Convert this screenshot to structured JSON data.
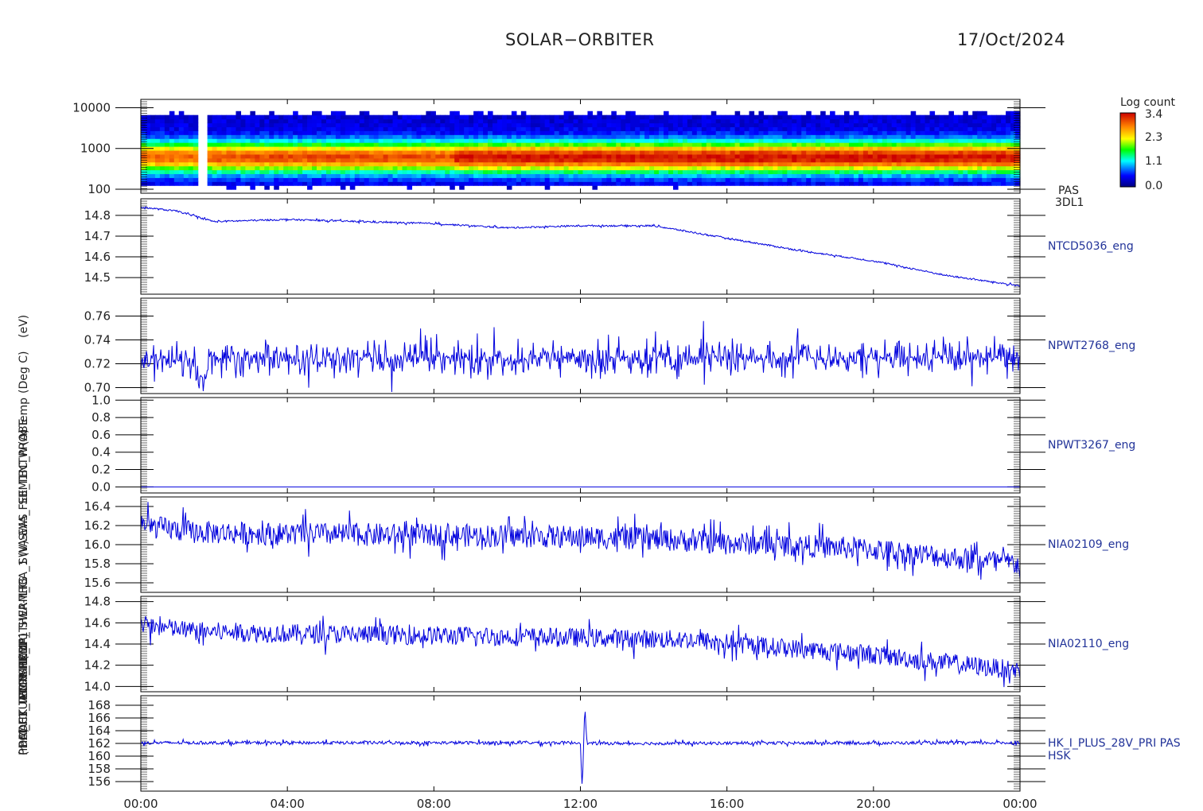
{
  "header": {
    "title": "SOLAR−ORBITER",
    "date": "17/Oct/2024"
  },
  "ylabels": [
    "(eV)",
    "(Deg C)",
    "x Temp",
    "(A)",
    "NTW",
    "SBM1",
    "SWA_FEE_TBC_PROBE",
    "(V)",
    "LTG",
    "SWA-EAS",
    "SWA-TH3",
    "(mA)",
    "SPM1",
    "PCRM",
    "(mA)",
    "ACTUATOR_1",
    "TEMP_THERM_CA_1",
    "PDM_HK_IMON_PCDF1",
    "PCDF1_TEMP_HK_1"
  ],
  "chart_data": [
    {
      "type": "heatmap",
      "panel": "spectrogram",
      "yticks": [
        "10000",
        "1000",
        "100"
      ],
      "ytick_values": [
        10000,
        1000,
        100
      ],
      "ylim": [
        80,
        16000
      ],
      "yscale": "log",
      "rlabel": [
        "PAS",
        "3DL1"
      ],
      "colorbar": {
        "title": "Log count",
        "ticks": [
          "3.4",
          "2.3",
          "1.1",
          "0.0"
        ],
        "range": [
          0.0,
          3.4
        ]
      },
      "gaps": [
        [
          1.5,
          1.78
        ]
      ],
      "peak_energy_eV": 620,
      "peak_log_count": 3.0
    },
    {
      "type": "line",
      "label": "NTCD5036_eng",
      "yticks": [
        "14.8",
        "14.7",
        "14.6",
        "14.5"
      ],
      "ytick_values": [
        14.8,
        14.7,
        14.6,
        14.5
      ],
      "ylim": [
        14.42,
        14.88
      ],
      "color": "#0000dd",
      "x": [
        0,
        1,
        2,
        4,
        6,
        8,
        10,
        12,
        14,
        16,
        18,
        20,
        22,
        24
      ],
      "y": [
        14.84,
        14.82,
        14.77,
        14.78,
        14.77,
        14.76,
        14.74,
        14.75,
        14.75,
        14.69,
        14.63,
        14.58,
        14.51,
        14.46
      ],
      "noise": 0.004
    },
    {
      "type": "line",
      "label": "NPWT2768_eng",
      "yticks": [
        "0.76",
        "0.74",
        "0.72",
        "0.70"
      ],
      "ytick_values": [
        0.76,
        0.74,
        0.72,
        0.7
      ],
      "ylim": [
        0.695,
        0.775
      ],
      "color": "#0000dd",
      "x": [
        0,
        1.45,
        1.5,
        1.8,
        1.82,
        24
      ],
      "y": [
        0.722,
        0.722,
        0.705,
        0.705,
        0.725,
        0.725
      ],
      "noise": 0.014
    },
    {
      "type": "line",
      "label": "NPWT3267_eng",
      "yticks": [
        "1.0",
        "0.8",
        "0.6",
        "0.4",
        "0.2",
        "0.0"
      ],
      "ytick_values": [
        1.0,
        0.8,
        0.6,
        0.4,
        0.2,
        0.0
      ],
      "ylim": [
        -0.07,
        1.03
      ],
      "color": "#0000dd",
      "x": [
        0,
        24
      ],
      "y": [
        0.0,
        0.0
      ],
      "noise": 0.0
    },
    {
      "type": "line",
      "label": "NIA02109_eng",
      "yticks": [
        "16.4",
        "16.2",
        "16.0",
        "15.8",
        "15.6"
      ],
      "ytick_values": [
        16.4,
        16.2,
        16.0,
        15.8,
        15.6
      ],
      "ylim": [
        15.5,
        16.5
      ],
      "color": "#0000dd",
      "x": [
        0,
        1.5,
        4,
        8,
        12,
        14,
        16,
        18,
        20,
        22,
        24
      ],
      "y": [
        16.2,
        16.13,
        16.11,
        16.1,
        16.08,
        16.06,
        16.02,
        15.99,
        15.95,
        15.87,
        15.8
      ],
      "noise": 0.12
    },
    {
      "type": "line",
      "label": "NIA02110_eng",
      "yticks": [
        "14.8",
        "14.6",
        "14.4",
        "14.2",
        "14.0"
      ],
      "ytick_values": [
        14.8,
        14.6,
        14.4,
        14.2,
        14.0
      ],
      "ylim": [
        13.95,
        14.85
      ],
      "color": "#0000dd",
      "x": [
        0,
        1.5,
        4,
        8,
        12,
        15,
        17,
        20,
        22,
        24
      ],
      "y": [
        14.58,
        14.52,
        14.5,
        14.48,
        14.46,
        14.44,
        14.38,
        14.3,
        14.22,
        14.15
      ],
      "noise": 0.09
    },
    {
      "type": "line",
      "label": "HK_I_PLUS_28V_PRI PAS",
      "label2": "HSK",
      "yticks": [
        "168",
        "166",
        "164",
        "162",
        "160",
        "158",
        "156"
      ],
      "ytick_values": [
        168,
        166,
        164,
        162,
        160,
        158,
        156
      ],
      "ylim": [
        154.5,
        169.5
      ],
      "color": "#0000dd",
      "x": [
        0,
        12.0,
        12.05,
        12.12,
        12.18,
        24
      ],
      "y": [
        162.1,
        162.1,
        155.0,
        167.8,
        162.0,
        162.1
      ],
      "noise": 0.25
    }
  ],
  "xaxis": {
    "ticks": [
      "00:00",
      "04:00",
      "08:00",
      "12:00",
      "16:00",
      "20:00",
      "00:00"
    ],
    "tick_values": [
      0,
      4,
      8,
      12,
      16,
      20,
      24
    ],
    "xlim": [
      0,
      24
    ],
    "unit": "hours"
  }
}
